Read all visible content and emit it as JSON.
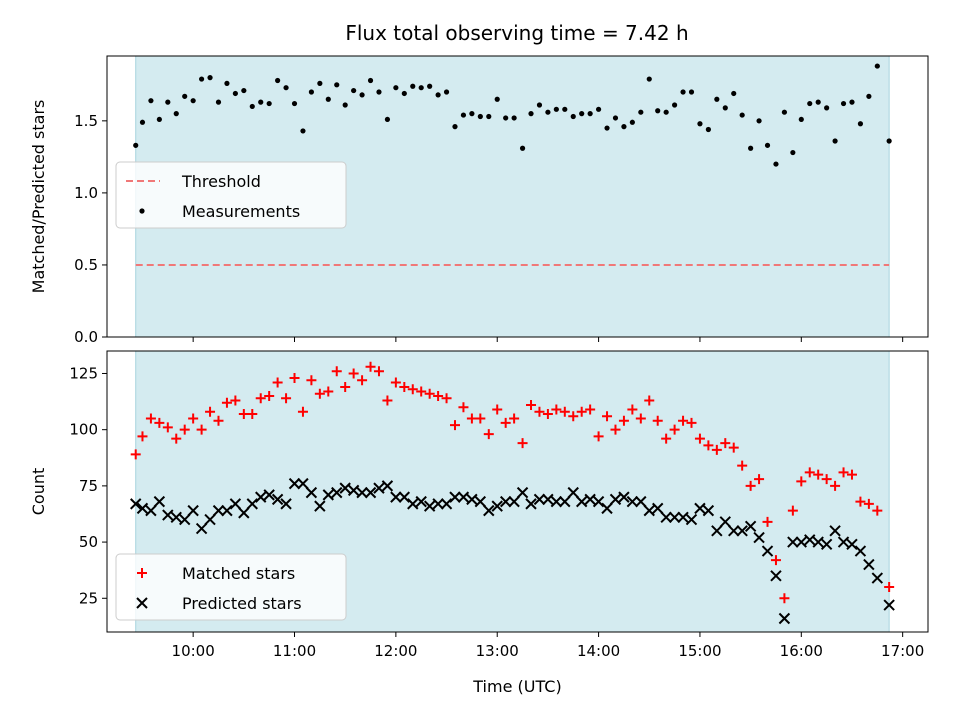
{
  "title": "Flux total observing time = 7.42 h",
  "colors": {
    "shade": "#d4ebf0",
    "shade_edge": "#a8d4de",
    "threshold": "#f07878",
    "measurements": "#000000",
    "matched": "#ff0000",
    "predicted": "#000000"
  },
  "chart_data": [
    {
      "type": "scatter",
      "ylabel": "Matched/Predicted stars",
      "xlabel": "",
      "xlim": [
        "09:09",
        "17:15"
      ],
      "ylim": [
        0,
        1.95
      ],
      "yticks": [
        {
          "value": 0.0,
          "label": "0.0"
        },
        {
          "value": 0.5,
          "label": "0.5"
        },
        {
          "value": 1.0,
          "label": "1.0"
        },
        {
          "value": 1.5,
          "label": "1.5"
        }
      ],
      "shaded_span": [
        "09:26",
        "16:52"
      ],
      "legend": {
        "position": "center-left"
      },
      "series": [
        {
          "name": "Threshold",
          "kind": "hline",
          "y": 0.5
        },
        {
          "name": "Measurements",
          "kind": "dot",
          "x": [
            "09:26",
            "09:30",
            "09:35",
            "09:40",
            "09:45",
            "09:50",
            "09:55",
            "10:00",
            "10:05",
            "10:10",
            "10:15",
            "10:20",
            "10:25",
            "10:30",
            "10:35",
            "10:40",
            "10:45",
            "10:50",
            "10:55",
            "11:00",
            "11:05",
            "11:10",
            "11:15",
            "11:20",
            "11:25",
            "11:30",
            "11:35",
            "11:40",
            "11:45",
            "11:50",
            "11:55",
            "12:00",
            "12:05",
            "12:10",
            "12:15",
            "12:20",
            "12:25",
            "12:30",
            "12:35",
            "12:40",
            "12:45",
            "12:50",
            "12:55",
            "13:00",
            "13:05",
            "13:10",
            "13:15",
            "13:20",
            "13:25",
            "13:30",
            "13:35",
            "13:40",
            "13:45",
            "13:50",
            "13:55",
            "14:00",
            "14:05",
            "14:10",
            "14:15",
            "14:20",
            "14:25",
            "14:30",
            "14:35",
            "14:40",
            "14:45",
            "14:50",
            "14:55",
            "15:00",
            "15:05",
            "15:10",
            "15:15",
            "15:20",
            "15:25",
            "15:30",
            "15:35",
            "15:40",
            "15:45",
            "15:50",
            "15:55",
            "16:00",
            "16:05",
            "16:10",
            "16:15",
            "16:20",
            "16:25",
            "16:30",
            "16:35",
            "16:40",
            "16:45",
            "16:52"
          ],
          "y": [
            1.33,
            1.49,
            1.64,
            1.51,
            1.63,
            1.55,
            1.67,
            1.64,
            1.79,
            1.8,
            1.63,
            1.76,
            1.69,
            1.71,
            1.6,
            1.63,
            1.62,
            1.78,
            1.73,
            1.62,
            1.43,
            1.7,
            1.76,
            1.65,
            1.75,
            1.61,
            1.71,
            1.68,
            1.78,
            1.7,
            1.51,
            1.73,
            1.69,
            1.74,
            1.73,
            1.74,
            1.68,
            1.7,
            1.46,
            1.54,
            1.55,
            1.53,
            1.53,
            1.65,
            1.52,
            1.52,
            1.31,
            1.55,
            1.61,
            1.56,
            1.58,
            1.58,
            1.53,
            1.55,
            1.55,
            1.58,
            1.45,
            1.52,
            1.46,
            1.49,
            1.56,
            1.79,
            1.57,
            1.56,
            1.61,
            1.7,
            1.7,
            1.48,
            1.44,
            1.65,
            1.59,
            1.69,
            1.54,
            1.31,
            1.5,
            1.33,
            1.2,
            1.56,
            1.28,
            1.51,
            1.62,
            1.63,
            1.59,
            1.36,
            1.62,
            1.63,
            1.48,
            1.67,
            1.88,
            1.36
          ]
        }
      ]
    },
    {
      "type": "scatter",
      "ylabel": "Count",
      "xlabel": "Time (UTC)",
      "xlim": [
        "09:09",
        "17:15"
      ],
      "ylim": [
        10,
        135
      ],
      "yticks": [
        {
          "value": 25,
          "label": "25"
        },
        {
          "value": 50,
          "label": "50"
        },
        {
          "value": 75,
          "label": "75"
        },
        {
          "value": 100,
          "label": "100"
        },
        {
          "value": 125,
          "label": "125"
        }
      ],
      "xticks": [
        {
          "value": "10:00",
          "label": "10:00"
        },
        {
          "value": "11:00",
          "label": "11:00"
        },
        {
          "value": "12:00",
          "label": "12:00"
        },
        {
          "value": "13:00",
          "label": "13:00"
        },
        {
          "value": "14:00",
          "label": "14:00"
        },
        {
          "value": "15:00",
          "label": "15:00"
        },
        {
          "value": "16:00",
          "label": "16:00"
        },
        {
          "value": "17:00",
          "label": "17:00"
        }
      ],
      "shaded_span": [
        "09:26",
        "16:52"
      ],
      "legend": {
        "position": "lower-left"
      },
      "series": [
        {
          "name": "Matched stars",
          "kind": "plus",
          "x": [
            "09:26",
            "09:30",
            "09:35",
            "09:40",
            "09:45",
            "09:50",
            "09:55",
            "10:00",
            "10:05",
            "10:10",
            "10:15",
            "10:20",
            "10:25",
            "10:30",
            "10:35",
            "10:40",
            "10:45",
            "10:50",
            "10:55",
            "11:00",
            "11:05",
            "11:10",
            "11:15",
            "11:20",
            "11:25",
            "11:30",
            "11:35",
            "11:40",
            "11:45",
            "11:50",
            "11:55",
            "12:00",
            "12:05",
            "12:10",
            "12:15",
            "12:20",
            "12:25",
            "12:30",
            "12:35",
            "12:40",
            "12:45",
            "12:50",
            "12:55",
            "13:00",
            "13:05",
            "13:10",
            "13:15",
            "13:20",
            "13:25",
            "13:30",
            "13:35",
            "13:40",
            "13:45",
            "13:50",
            "13:55",
            "14:00",
            "14:05",
            "14:10",
            "14:15",
            "14:20",
            "14:25",
            "14:30",
            "14:35",
            "14:40",
            "14:45",
            "14:50",
            "14:55",
            "15:00",
            "15:05",
            "15:10",
            "15:15",
            "15:20",
            "15:25",
            "15:30",
            "15:35",
            "15:40",
            "15:45",
            "15:50",
            "15:55",
            "16:00",
            "16:05",
            "16:10",
            "16:15",
            "16:20",
            "16:25",
            "16:30",
            "16:35",
            "16:40",
            "16:45",
            "16:52"
          ],
          "y": [
            89,
            97,
            105,
            103,
            101,
            96,
            100,
            105,
            100,
            108,
            104,
            112,
            113,
            107,
            107,
            114,
            115,
            121,
            114,
            123,
            108,
            122,
            116,
            117,
            126,
            119,
            125,
            122,
            128,
            126,
            113,
            121,
            119,
            118,
            117,
            116,
            115,
            114,
            102,
            110,
            105,
            105,
            98,
            109,
            103,
            105,
            94,
            111,
            108,
            107,
            109,
            108,
            106,
            108,
            109,
            97,
            106,
            100,
            104,
            109,
            105,
            113,
            104,
            96,
            100,
            104,
            103,
            96,
            93,
            91,
            94,
            92,
            84,
            75,
            78,
            59,
            42,
            25,
            64,
            77,
            81,
            80,
            78,
            75,
            81,
            80,
            68,
            67,
            64,
            30
          ]
        },
        {
          "name": "Predicted stars",
          "kind": "cross",
          "x": [
            "09:26",
            "09:30",
            "09:35",
            "09:40",
            "09:45",
            "09:50",
            "09:55",
            "10:00",
            "10:05",
            "10:10",
            "10:15",
            "10:20",
            "10:25",
            "10:30",
            "10:35",
            "10:40",
            "10:45",
            "10:50",
            "10:55",
            "11:00",
            "11:05",
            "11:10",
            "11:15",
            "11:20",
            "11:25",
            "11:30",
            "11:35",
            "11:40",
            "11:45",
            "11:50",
            "11:55",
            "12:00",
            "12:05",
            "12:10",
            "12:15",
            "12:20",
            "12:25",
            "12:30",
            "12:35",
            "12:40",
            "12:45",
            "12:50",
            "12:55",
            "13:00",
            "13:05",
            "13:10",
            "13:15",
            "13:20",
            "13:25",
            "13:30",
            "13:35",
            "13:40",
            "13:45",
            "13:50",
            "13:55",
            "14:00",
            "14:05",
            "14:10",
            "14:15",
            "14:20",
            "14:25",
            "14:30",
            "14:35",
            "14:40",
            "14:45",
            "14:50",
            "14:55",
            "15:00",
            "15:05",
            "15:10",
            "15:15",
            "15:20",
            "15:25",
            "15:30",
            "15:35",
            "15:40",
            "15:45",
            "15:50",
            "15:55",
            "16:00",
            "16:05",
            "16:10",
            "16:15",
            "16:20",
            "16:25",
            "16:30",
            "16:35",
            "16:40",
            "16:45",
            "16:52"
          ],
          "y": [
            67,
            65,
            64,
            68,
            62,
            61,
            60,
            64,
            56,
            60,
            64,
            64,
            67,
            63,
            67,
            70,
            71,
            69,
            67,
            76,
            76,
            72,
            66,
            71,
            72,
            74,
            73,
            72,
            72,
            74,
            75,
            70,
            70,
            67,
            68,
            66,
            67,
            67,
            70,
            70,
            69,
            68,
            64,
            66,
            68,
            68,
            72,
            67,
            69,
            69,
            68,
            68,
            72,
            68,
            69,
            68,
            65,
            69,
            70,
            68,
            68,
            64,
            65,
            61,
            61,
            61,
            60,
            65,
            64,
            55,
            59,
            55,
            55,
            57,
            52,
            46,
            35,
            16,
            50,
            50,
            51,
            50,
            49,
            55,
            50,
            49,
            46,
            40,
            34,
            22
          ]
        }
      ]
    }
  ]
}
